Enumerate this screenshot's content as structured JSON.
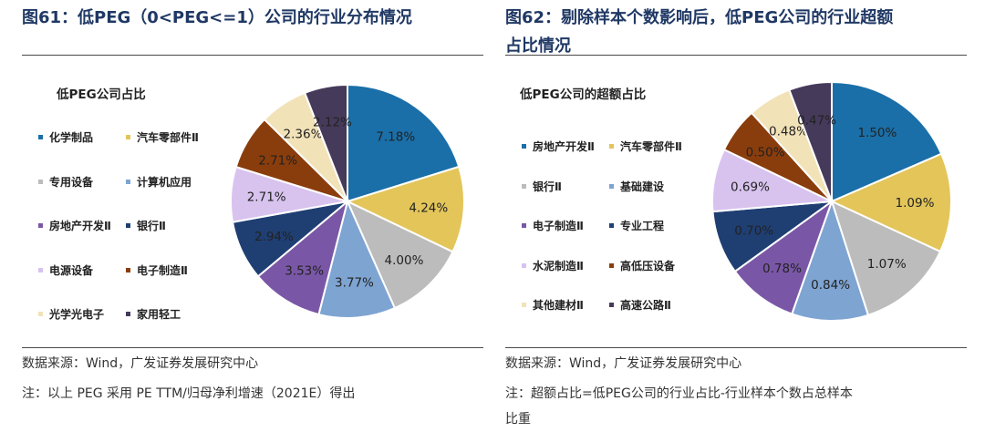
{
  "left": {
    "title": "图61：低PEG（0<PEG<=1）公司的行业分布情况",
    "source": "数据来源：Wind，广发证券发展研究中心",
    "note": "注：以上 PEG 采用 PE TTM/归母净利增速（2021E）得出",
    "legend_items": [
      "化学制品",
      "汽车零部件Ⅱ",
      "专用设备",
      "计算机应用",
      "房地产开发Ⅱ",
      "银行Ⅱ",
      "电源设备",
      "电子制造Ⅱ",
      "光学光电子",
      "家用轻工"
    ]
  },
  "right": {
    "title_line1": "图62：剔除样本个数影响后，低PEG公司的行业超额",
    "title_line2": "占比情况",
    "source": "数据来源：Wind，广发证券发展研究中心",
    "note_line1": "注：超额占比=低PEG公司的行业占比-行业样本个数占总样本",
    "note_line2": "比重",
    "legend_items": [
      "房地产开发Ⅱ",
      "汽车零部件Ⅱ",
      "银行Ⅱ",
      "基础建设",
      "电子制造Ⅱ",
      "专业工程",
      "水泥制造Ⅱ",
      "高低压设备",
      "其他建材Ⅱ",
      "高速公路Ⅱ"
    ]
  },
  "chart_data": [
    {
      "type": "pie",
      "title": "低PEG公司占比",
      "categories": [
        "化学制品",
        "汽车零部件Ⅱ",
        "专用设备",
        "计算机应用",
        "房地产开发Ⅱ",
        "银行Ⅱ",
        "电源设备",
        "电子制造Ⅱ",
        "光学光电子",
        "家用轻工"
      ],
      "values": [
        7.18,
        4.24,
        4.0,
        3.77,
        3.53,
        2.94,
        2.71,
        2.71,
        2.36,
        2.12
      ],
      "labels": [
        "7.18%",
        "4.24%",
        "4.00%",
        "3.77%",
        "3.53%",
        "2.94%",
        "2.71%",
        "2.71%",
        "2.36%",
        "2.12%"
      ],
      "colors": [
        "#1a6fa8",
        "#e3c55a",
        "#bcbcbc",
        "#7ea4d2",
        "#7a57a6",
        "#1f3f73",
        "#d8c3ef",
        "#8a3d0c",
        "#f2e2b8",
        "#463a5b"
      ],
      "legend": "left"
    },
    {
      "type": "pie",
      "title": "低PEG公司的超额占比",
      "categories": [
        "房地产开发Ⅱ",
        "汽车零部件Ⅱ",
        "银行Ⅱ",
        "基础建设",
        "电子制造Ⅱ",
        "专业工程",
        "水泥制造Ⅱ",
        "高低压设备",
        "其他建材Ⅱ",
        "高速公路Ⅱ"
      ],
      "values": [
        1.5,
        1.09,
        1.07,
        0.84,
        0.78,
        0.7,
        0.69,
        0.5,
        0.48,
        0.47
      ],
      "labels": [
        "1.50%",
        "1.09%",
        "1.07%",
        "0.84%",
        "0.78%",
        "0.70%",
        "0.69%",
        "0.50%",
        "0.48%",
        "0.47%"
      ],
      "colors": [
        "#1a6fa8",
        "#e3c55a",
        "#bcbcbc",
        "#7ea4d2",
        "#7a57a6",
        "#1f3f73",
        "#d8c3ef",
        "#8a3d0c",
        "#f2e2b8",
        "#463a5b"
      ],
      "legend": "left"
    }
  ]
}
